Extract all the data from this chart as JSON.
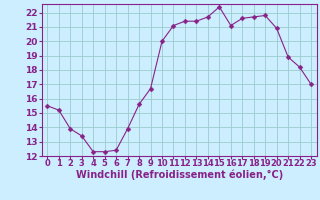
{
  "x": [
    0,
    1,
    2,
    3,
    4,
    5,
    6,
    7,
    8,
    9,
    10,
    11,
    12,
    13,
    14,
    15,
    16,
    17,
    18,
    19,
    20,
    21,
    22,
    23
  ],
  "y": [
    15.5,
    15.2,
    13.9,
    13.4,
    12.3,
    12.3,
    12.4,
    13.9,
    15.6,
    16.7,
    20.0,
    21.1,
    21.4,
    21.4,
    21.7,
    22.4,
    21.1,
    21.6,
    21.7,
    21.8,
    20.9,
    18.9,
    18.2,
    17.0
  ],
  "line_color": "#882288",
  "marker": "D",
  "marker_size": 2.5,
  "bg_color": "#cceeff",
  "grid_color": "#99cccc",
  "xlabel": "Windchill (Refroidissement éolien,°C)",
  "xlim": [
    -0.5,
    23.5
  ],
  "ylim": [
    12,
    22.6
  ],
  "yticks": [
    12,
    13,
    14,
    15,
    16,
    17,
    18,
    19,
    20,
    21,
    22
  ],
  "xticks": [
    0,
    1,
    2,
    3,
    4,
    5,
    6,
    7,
    8,
    9,
    10,
    11,
    12,
    13,
    14,
    15,
    16,
    17,
    18,
    19,
    20,
    21,
    22,
    23
  ],
  "tick_color": "#882288",
  "label_color": "#882288",
  "spine_color": "#882288",
  "xlabel_fontsize": 7,
  "ytick_fontsize": 6.5,
  "xtick_fontsize": 6
}
